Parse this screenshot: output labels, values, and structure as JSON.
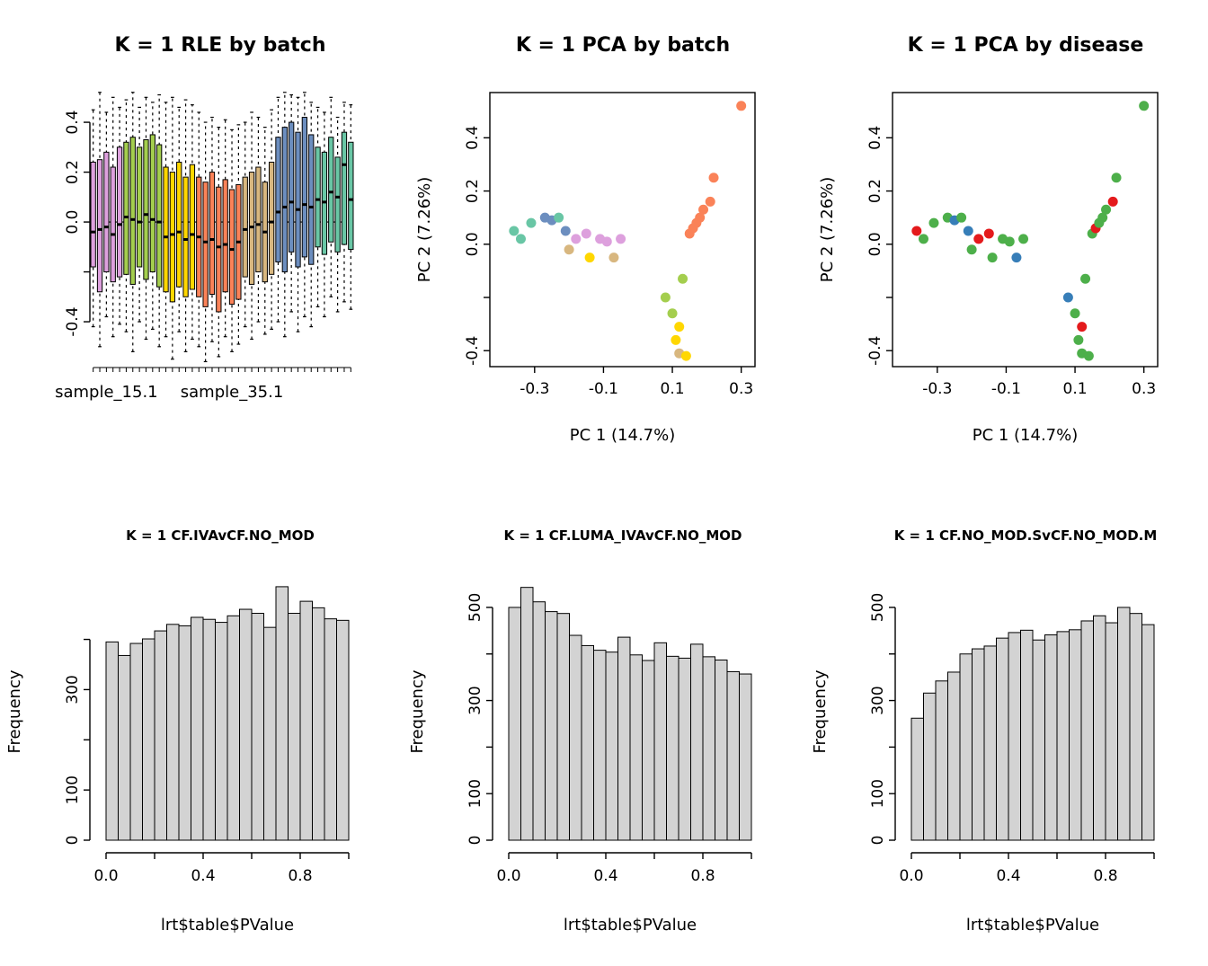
{
  "page": {
    "background": "#ffffff"
  },
  "palette": {
    "batch": {
      "plum": "#DDA0DD",
      "yellowgreen": "#A4CE4E",
      "gold": "#FFD700",
      "coral": "#FA8258",
      "tan": "#D8B77F",
      "steelblue": "#6C8EBF",
      "teal": "#69C6A5"
    },
    "disease": {
      "green": "#4DAF4A",
      "red": "#E41A1C",
      "blue": "#377EB8"
    },
    "hist_bar_fill": "#D3D3D3",
    "axis_color": "#000000"
  },
  "chart_data": [
    {
      "id": "rle-by-batch",
      "type": "boxplot",
      "title": "K = 1 RLE by batch",
      "ylim": [
        -0.58,
        0.53
      ],
      "yticks": [
        -0.4,
        -0.2,
        0,
        0.2,
        0.4
      ],
      "ytick_labels": [
        -0.4,
        0,
        0.2,
        0.4
      ],
      "zero_line": 0,
      "x_labels": [
        {
          "text": "sample_15.1",
          "at_box": 2.5
        },
        {
          "text": "sample_35.1",
          "at_box": 21.5
        }
      ],
      "boxes": [
        {
          "lo": -0.42,
          "q1": -0.18,
          "med": -0.04,
          "q3": 0.24,
          "hi": 0.45,
          "batch": "plum"
        },
        {
          "lo": -0.5,
          "q1": -0.28,
          "med": -0.03,
          "q3": 0.25,
          "hi": 0.52,
          "batch": "plum"
        },
        {
          "lo": -0.38,
          "q1": -0.2,
          "med": -0.02,
          "q3": 0.28,
          "hi": 0.44,
          "batch": "plum"
        },
        {
          "lo": -0.46,
          "q1": -0.24,
          "med": -0.05,
          "q3": 0.22,
          "hi": 0.5,
          "batch": "plum"
        },
        {
          "lo": -0.41,
          "q1": -0.22,
          "med": -0.01,
          "q3": 0.3,
          "hi": 0.46,
          "batch": "plum"
        },
        {
          "lo": -0.44,
          "q1": -0.21,
          "med": 0.02,
          "q3": 0.32,
          "hi": 0.49,
          "batch": "yellowgreen"
        },
        {
          "lo": -0.52,
          "q1": -0.25,
          "med": 0.01,
          "q3": 0.34,
          "hi": 0.52,
          "batch": "yellowgreen"
        },
        {
          "lo": -0.4,
          "q1": -0.18,
          "med": 0.0,
          "q3": 0.3,
          "hi": 0.46,
          "batch": "yellowgreen"
        },
        {
          "lo": -0.47,
          "q1": -0.23,
          "med": 0.03,
          "q3": 0.33,
          "hi": 0.5,
          "batch": "yellowgreen"
        },
        {
          "lo": -0.43,
          "q1": -0.2,
          "med": 0.01,
          "q3": 0.35,
          "hi": 0.48,
          "batch": "yellowgreen"
        },
        {
          "lo": -0.5,
          "q1": -0.26,
          "med": 0.0,
          "q3": 0.31,
          "hi": 0.51,
          "batch": "yellowgreen"
        },
        {
          "lo": -0.46,
          "q1": -0.28,
          "med": -0.06,
          "q3": 0.22,
          "hi": 0.48,
          "batch": "gold"
        },
        {
          "lo": -0.55,
          "q1": -0.32,
          "med": -0.05,
          "q3": 0.2,
          "hi": 0.5,
          "batch": "gold"
        },
        {
          "lo": -0.44,
          "q1": -0.26,
          "med": -0.04,
          "q3": 0.24,
          "hi": 0.46,
          "batch": "gold"
        },
        {
          "lo": -0.52,
          "q1": -0.3,
          "med": -0.07,
          "q3": 0.18,
          "hi": 0.49,
          "batch": "gold"
        },
        {
          "lo": -0.47,
          "q1": -0.27,
          "med": -0.05,
          "q3": 0.23,
          "hi": 0.47,
          "batch": "gold"
        },
        {
          "lo": -0.5,
          "q1": -0.3,
          "med": -0.06,
          "q3": 0.18,
          "hi": 0.44,
          "batch": "coral"
        },
        {
          "lo": -0.56,
          "q1": -0.34,
          "med": -0.08,
          "q3": 0.16,
          "hi": 0.4,
          "batch": "coral"
        },
        {
          "lo": -0.48,
          "q1": -0.29,
          "med": -0.07,
          "q3": 0.2,
          "hi": 0.42,
          "batch": "coral"
        },
        {
          "lo": -0.54,
          "q1": -0.36,
          "med": -0.1,
          "q3": 0.14,
          "hi": 0.38,
          "batch": "coral"
        },
        {
          "lo": -0.46,
          "q1": -0.28,
          "med": -0.09,
          "q3": 0.17,
          "hi": 0.41,
          "batch": "coral"
        },
        {
          "lo": -0.52,
          "q1": -0.33,
          "med": -0.11,
          "q3": 0.13,
          "hi": 0.37,
          "batch": "coral"
        },
        {
          "lo": -0.49,
          "q1": -0.31,
          "med": -0.08,
          "q3": 0.15,
          "hi": 0.39,
          "batch": "coral"
        },
        {
          "lo": -0.42,
          "q1": -0.22,
          "med": -0.03,
          "q3": 0.18,
          "hi": 0.4,
          "batch": "tan"
        },
        {
          "lo": -0.47,
          "q1": -0.25,
          "med": -0.02,
          "q3": 0.2,
          "hi": 0.44,
          "batch": "tan"
        },
        {
          "lo": -0.4,
          "q1": -0.2,
          "med": -0.01,
          "q3": 0.22,
          "hi": 0.42,
          "batch": "tan"
        },
        {
          "lo": -0.45,
          "q1": -0.24,
          "med": -0.04,
          "q3": 0.16,
          "hi": 0.38,
          "batch": "tan"
        },
        {
          "lo": -0.43,
          "q1": -0.21,
          "med": 0.0,
          "q3": 0.24,
          "hi": 0.45,
          "batch": "tan"
        },
        {
          "lo": -0.4,
          "q1": -0.16,
          "med": 0.04,
          "q3": 0.34,
          "hi": 0.5,
          "batch": "steelblue"
        },
        {
          "lo": -0.46,
          "q1": -0.2,
          "med": 0.06,
          "q3": 0.38,
          "hi": 0.52,
          "batch": "steelblue"
        },
        {
          "lo": -0.36,
          "q1": -0.12,
          "med": 0.08,
          "q3": 0.4,
          "hi": 0.51,
          "batch": "steelblue"
        },
        {
          "lo": -0.44,
          "q1": -0.18,
          "med": 0.05,
          "q3": 0.36,
          "hi": 0.5,
          "batch": "steelblue"
        },
        {
          "lo": -0.38,
          "q1": -0.14,
          "med": 0.07,
          "q3": 0.42,
          "hi": 0.52,
          "batch": "steelblue"
        },
        {
          "lo": -0.42,
          "q1": -0.17,
          "med": 0.06,
          "q3": 0.35,
          "hi": 0.48,
          "batch": "steelblue"
        },
        {
          "lo": -0.34,
          "q1": -0.1,
          "med": 0.09,
          "q3": 0.3,
          "hi": 0.46,
          "batch": "teal"
        },
        {
          "lo": -0.38,
          "q1": -0.13,
          "med": 0.08,
          "q3": 0.28,
          "hi": 0.44,
          "batch": "teal"
        },
        {
          "lo": -0.3,
          "q1": -0.08,
          "med": 0.12,
          "q3": 0.34,
          "hi": 0.5,
          "batch": "teal"
        },
        {
          "lo": -0.36,
          "q1": -0.12,
          "med": 0.1,
          "q3": 0.26,
          "hi": 0.42,
          "batch": "teal"
        },
        {
          "lo": -0.32,
          "q1": -0.09,
          "med": 0.23,
          "q3": 0.36,
          "hi": 0.48,
          "batch": "teal"
        },
        {
          "lo": -0.35,
          "q1": -0.11,
          "med": 0.09,
          "q3": 0.32,
          "hi": 0.47,
          "batch": "teal"
        }
      ]
    },
    {
      "id": "pca-by-batch",
      "type": "scatter",
      "title": "K = 1 PCA by batch",
      "xlabel": "PC 1 (14.7%)",
      "ylabel": "PC 2 (7.26%)",
      "xlim": [
        -0.43,
        0.34
      ],
      "ylim": [
        -0.46,
        0.57
      ],
      "xticks": [
        -0.3,
        -0.1,
        0.1,
        0.3
      ],
      "yticks": [
        -0.4,
        -0.2,
        0,
        0.2,
        0.4
      ],
      "ytick_labels": [
        -0.4,
        0,
        0.2,
        0.4
      ],
      "color_by": "batch",
      "points": [
        {
          "x": -0.36,
          "y": 0.05,
          "batch": "teal",
          "disease": "red"
        },
        {
          "x": -0.34,
          "y": 0.02,
          "batch": "teal",
          "disease": "green"
        },
        {
          "x": -0.31,
          "y": 0.08,
          "batch": "teal",
          "disease": "green"
        },
        {
          "x": -0.27,
          "y": 0.1,
          "batch": "steelblue",
          "disease": "green"
        },
        {
          "x": -0.25,
          "y": 0.09,
          "batch": "steelblue",
          "disease": "blue"
        },
        {
          "x": -0.23,
          "y": 0.1,
          "batch": "teal",
          "disease": "green"
        },
        {
          "x": -0.21,
          "y": 0.05,
          "batch": "steelblue",
          "disease": "blue"
        },
        {
          "x": -0.2,
          "y": -0.02,
          "batch": "tan",
          "disease": "green"
        },
        {
          "x": -0.18,
          "y": 0.02,
          "batch": "plum",
          "disease": "red"
        },
        {
          "x": -0.15,
          "y": 0.04,
          "batch": "plum",
          "disease": "red"
        },
        {
          "x": -0.14,
          "y": -0.05,
          "batch": "gold",
          "disease": "green"
        },
        {
          "x": -0.11,
          "y": 0.02,
          "batch": "plum",
          "disease": "green"
        },
        {
          "x": -0.09,
          "y": 0.01,
          "batch": "plum",
          "disease": "green"
        },
        {
          "x": -0.07,
          "y": -0.05,
          "batch": "tan",
          "disease": "blue"
        },
        {
          "x": -0.05,
          "y": 0.02,
          "batch": "plum",
          "disease": "green"
        },
        {
          "x": 0.08,
          "y": -0.2,
          "batch": "yellowgreen",
          "disease": "blue"
        },
        {
          "x": 0.1,
          "y": -0.26,
          "batch": "yellowgreen",
          "disease": "green"
        },
        {
          "x": 0.12,
          "y": -0.31,
          "batch": "gold",
          "disease": "red"
        },
        {
          "x": 0.11,
          "y": -0.36,
          "batch": "gold",
          "disease": "green"
        },
        {
          "x": 0.12,
          "y": -0.41,
          "batch": "tan",
          "disease": "green"
        },
        {
          "x": 0.14,
          "y": -0.42,
          "batch": "gold",
          "disease": "green"
        },
        {
          "x": 0.13,
          "y": -0.13,
          "batch": "yellowgreen",
          "disease": "green"
        },
        {
          "x": 0.15,
          "y": 0.04,
          "batch": "coral",
          "disease": "green"
        },
        {
          "x": 0.16,
          "y": 0.06,
          "batch": "coral",
          "disease": "red"
        },
        {
          "x": 0.17,
          "y": 0.08,
          "batch": "coral",
          "disease": "green"
        },
        {
          "x": 0.18,
          "y": 0.1,
          "batch": "coral",
          "disease": "green"
        },
        {
          "x": 0.19,
          "y": 0.13,
          "batch": "coral",
          "disease": "green"
        },
        {
          "x": 0.21,
          "y": 0.16,
          "batch": "coral",
          "disease": "red"
        },
        {
          "x": 0.22,
          "y": 0.25,
          "batch": "coral",
          "disease": "green"
        },
        {
          "x": 0.3,
          "y": 0.52,
          "batch": "coral",
          "disease": "green"
        }
      ]
    },
    {
      "id": "pca-by-disease",
      "type": "scatter",
      "title": "K = 1 PCA by disease",
      "xlabel": "PC 1 (14.7%)",
      "ylabel": "PC 2 (7.26%)",
      "xlim": [
        -0.43,
        0.34
      ],
      "ylim": [
        -0.46,
        0.57
      ],
      "xticks": [
        -0.3,
        -0.1,
        0.1,
        0.3
      ],
      "yticks": [
        -0.4,
        -0.2,
        0,
        0.2,
        0.4
      ],
      "ytick_labels": [
        -0.4,
        0,
        0.2,
        0.4
      ],
      "color_by": "disease",
      "points": [
        {
          "x": -0.36,
          "y": 0.05,
          "batch": "teal",
          "disease": "red"
        },
        {
          "x": -0.34,
          "y": 0.02,
          "batch": "teal",
          "disease": "green"
        },
        {
          "x": -0.31,
          "y": 0.08,
          "batch": "teal",
          "disease": "green"
        },
        {
          "x": -0.27,
          "y": 0.1,
          "batch": "steelblue",
          "disease": "green"
        },
        {
          "x": -0.25,
          "y": 0.09,
          "batch": "steelblue",
          "disease": "blue"
        },
        {
          "x": -0.23,
          "y": 0.1,
          "batch": "teal",
          "disease": "green"
        },
        {
          "x": -0.21,
          "y": 0.05,
          "batch": "steelblue",
          "disease": "blue"
        },
        {
          "x": -0.2,
          "y": -0.02,
          "batch": "tan",
          "disease": "green"
        },
        {
          "x": -0.18,
          "y": 0.02,
          "batch": "plum",
          "disease": "red"
        },
        {
          "x": -0.15,
          "y": 0.04,
          "batch": "plum",
          "disease": "red"
        },
        {
          "x": -0.14,
          "y": -0.05,
          "batch": "gold",
          "disease": "green"
        },
        {
          "x": -0.11,
          "y": 0.02,
          "batch": "plum",
          "disease": "green"
        },
        {
          "x": -0.09,
          "y": 0.01,
          "batch": "plum",
          "disease": "green"
        },
        {
          "x": -0.07,
          "y": -0.05,
          "batch": "tan",
          "disease": "blue"
        },
        {
          "x": -0.05,
          "y": 0.02,
          "batch": "plum",
          "disease": "green"
        },
        {
          "x": 0.08,
          "y": -0.2,
          "batch": "yellowgreen",
          "disease": "blue"
        },
        {
          "x": 0.1,
          "y": -0.26,
          "batch": "yellowgreen",
          "disease": "green"
        },
        {
          "x": 0.12,
          "y": -0.31,
          "batch": "gold",
          "disease": "red"
        },
        {
          "x": 0.11,
          "y": -0.36,
          "batch": "gold",
          "disease": "green"
        },
        {
          "x": 0.12,
          "y": -0.41,
          "batch": "tan",
          "disease": "green"
        },
        {
          "x": 0.14,
          "y": -0.42,
          "batch": "gold",
          "disease": "green"
        },
        {
          "x": 0.13,
          "y": -0.13,
          "batch": "yellowgreen",
          "disease": "green"
        },
        {
          "x": 0.15,
          "y": 0.04,
          "batch": "coral",
          "disease": "green"
        },
        {
          "x": 0.16,
          "y": 0.06,
          "batch": "coral",
          "disease": "red"
        },
        {
          "x": 0.17,
          "y": 0.08,
          "batch": "coral",
          "disease": "green"
        },
        {
          "x": 0.18,
          "y": 0.1,
          "batch": "coral",
          "disease": "green"
        },
        {
          "x": 0.19,
          "y": 0.13,
          "batch": "coral",
          "disease": "green"
        },
        {
          "x": 0.21,
          "y": 0.16,
          "batch": "coral",
          "disease": "red"
        },
        {
          "x": 0.22,
          "y": 0.25,
          "batch": "coral",
          "disease": "green"
        },
        {
          "x": 0.3,
          "y": 0.52,
          "batch": "coral",
          "disease": "green"
        }
      ]
    },
    {
      "id": "hist-cf-iva",
      "type": "histogram",
      "title": "K = 1 CF.IVAvCF.NO_MOD",
      "xlabel": "lrt$table$PValue",
      "ylabel": "Frequency",
      "bin_start": 0,
      "bin_width": 0.05,
      "counts": [
        395,
        368,
        392,
        401,
        417,
        430,
        427,
        444,
        440,
        434,
        447,
        460,
        452,
        424,
        505,
        452,
        476,
        463,
        441,
        438
      ],
      "xticks": [
        0,
        0.2,
        0.4,
        0.6,
        0.8,
        1
      ],
      "xtick_labels": [
        0,
        0.4,
        0.8
      ],
      "yticks": [
        0,
        100,
        200,
        300,
        400
      ],
      "ytick_labels": [
        0,
        100,
        300
      ],
      "ylim": [
        0,
        512
      ]
    },
    {
      "id": "hist-cf-luma-iva",
      "type": "histogram",
      "title": "K = 1 CF.LUMA_IVAvCF.NO_MOD",
      "xlabel": "lrt$table$PValue",
      "ylabel": "Frequency",
      "bin_start": 0,
      "bin_width": 0.05,
      "counts": [
        500,
        543,
        512,
        491,
        487,
        440,
        418,
        408,
        404,
        436,
        398,
        386,
        424,
        395,
        391,
        421,
        394,
        387,
        362,
        357
      ],
      "xticks": [
        0,
        0.2,
        0.4,
        0.6,
        0.8,
        1
      ],
      "xtick_labels": [
        0,
        0.4,
        0.8
      ],
      "yticks": [
        0,
        100,
        200,
        300,
        400,
        500
      ],
      "ytick_labels": [
        0,
        100,
        300,
        500
      ],
      "ylim": [
        0,
        552
      ]
    },
    {
      "id": "hist-cf-nomod-s",
      "type": "histogram",
      "title": "K = 1 CF.NO_MOD.SvCF.NO_MOD.M",
      "xlabel": "lrt$table$PValue",
      "ylabel": "Frequency",
      "bin_start": 0,
      "bin_width": 0.05,
      "counts": [
        262,
        316,
        342,
        361,
        400,
        411,
        417,
        434,
        446,
        451,
        430,
        441,
        448,
        452,
        471,
        482,
        467,
        500,
        487,
        463
      ],
      "xticks": [
        0,
        0.2,
        0.4,
        0.6,
        0.8,
        1
      ],
      "xtick_labels": [
        0,
        0.4,
        0.8
      ],
      "yticks": [
        0,
        100,
        200,
        300,
        400,
        500
      ],
      "ytick_labels": [
        0,
        100,
        300,
        500
      ],
      "ylim": [
        0,
        552
      ]
    }
  ]
}
